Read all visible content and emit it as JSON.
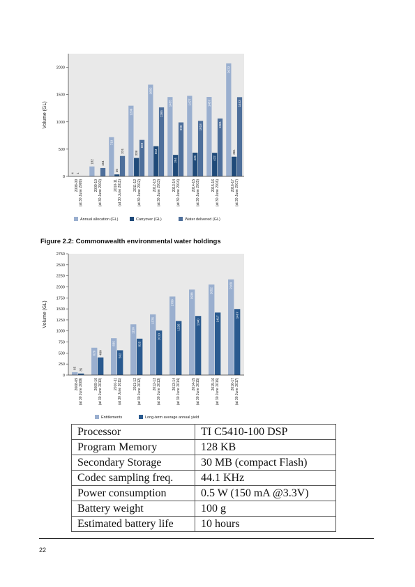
{
  "chart_data": [
    {
      "type": "bar",
      "title": "",
      "ylabel": "Volume (GL)",
      "ylim": [
        0,
        2250
      ],
      "yticks": [
        0,
        500,
        1000,
        1500,
        2000
      ],
      "categories": [
        [
          "2008-09",
          "(at 30 June 2009)"
        ],
        [
          "2009-10",
          "(at 30 June 2010)"
        ],
        [
          "2010-11",
          "(at 30 June 2011)"
        ],
        [
          "2011-12",
          "(at 30 June 2012)"
        ],
        [
          "2012-13",
          "(at 30 June 2013)"
        ],
        [
          "2013-14",
          "(at 30 June 2014)"
        ],
        [
          "2014-15",
          "(at 30 June 2015)"
        ],
        [
          "2015-16",
          "(at 30 June 2016)"
        ],
        [
          "2016-17",
          "(at 30 June 2017)"
        ]
      ],
      "series": [
        {
          "name": "Annual allocation (GL)",
          "values": [
            4,
            182,
            719,
            1296,
            1682,
            1455,
            1477,
            1457,
            2072
          ],
          "color": "#9aafcf",
          "labels": [
            "4",
            "182",
            "719",
            "1296",
            "1682",
            "1455",
            "1477",
            "1457",
            "2072"
          ]
        },
        {
          "name": "Carryover (GL)",
          "values": [
            1,
            0,
            36,
            338,
            553,
            394,
            435,
            432,
            361
          ],
          "color": "#1f4a79",
          "labels": [
            "1",
            "",
            "36",
            "338",
            "553",
            "394",
            "435",
            "432",
            "361"
          ]
        },
        {
          "name": "Water delivered (GL)",
          "values": [
            1,
            154,
            374,
            669,
            1265,
            990,
            1018,
            1061,
            1453
          ],
          "color": "#4e6f9b",
          "labels": [
            "",
            "154",
            "374",
            "669",
            "1265",
            "990",
            "1018",
            "1061",
            "1453"
          ]
        }
      ],
      "legend_position": "bottom",
      "grid": false
    },
    {
      "type": "bar",
      "title": "Figure 2.2: Commonwealth environmental water holdings",
      "ylabel": "Volume (GL)",
      "ylim": [
        0,
        2750
      ],
      "yticks": [
        0,
        250,
        500,
        750,
        1000,
        1250,
        1500,
        1750,
        2000,
        2250,
        2500,
        2750
      ],
      "categories": [
        [
          "2008-09",
          "(at 30 June 2009)"
        ],
        [
          "2009-10",
          "(at 30 June 2010)"
        ],
        [
          "2010-11",
          "(at 30 June 2011)"
        ],
        [
          "2011-12",
          "(at 30 June 2012)"
        ],
        [
          "2012-13",
          "(at 30 June 2013)"
        ],
        [
          "2013-14",
          "(at 30 June 2014)"
        ],
        [
          "2014-15",
          "(at 30 June 2015)"
        ],
        [
          "2015-16",
          "(at 30 June 2016)"
        ],
        [
          "2016-17",
          "(at 30 June 2017)"
        ]
      ],
      "series": [
        {
          "name": "Entitlements",
          "values": [
            65,
            620,
            835,
            1150,
            1376,
            1780,
            1938,
            2052,
            2169
          ],
          "color": "#9aafcf",
          "labels": [
            "65",
            "620",
            "835",
            "1150",
            "1376",
            "1780",
            "1938",
            "2052",
            "2169"
          ]
        },
        {
          "name": "Long-term average annual yield",
          "values": [
            35,
            400,
            562,
            825,
            1010,
            1226,
            1340,
            1417,
            1497
          ],
          "color": "#2a5a8f",
          "labels": [
            "35",
            "400",
            "562",
            "825",
            "1010",
            "1226",
            "1340",
            "1417",
            "1497"
          ]
        }
      ],
      "legend_position": "bottom",
      "grid": false
    }
  ],
  "spec_table": {
    "rows": [
      {
        "key": "Processor",
        "value": "TI  C5410-100 DSP"
      },
      {
        "key": "Program Memory",
        "value": "128 KB"
      },
      {
        "key": "Secondary Storage",
        "value": "30 MB (compact Flash)"
      },
      {
        "key": "Codec sampling freq.",
        "value": "44.1 KHz"
      },
      {
        "key": "Power consumption",
        "value": "0.5 W (150 mA @3.3V)"
      },
      {
        "key": "Battery weight",
        "value": "100 g"
      },
      {
        "key": "Estimated battery life",
        "value": "10 hours"
      }
    ]
  },
  "footer": {
    "page_number": "22"
  },
  "colors": {
    "plot_background": "#e9e9e9",
    "axis": "#333333"
  }
}
